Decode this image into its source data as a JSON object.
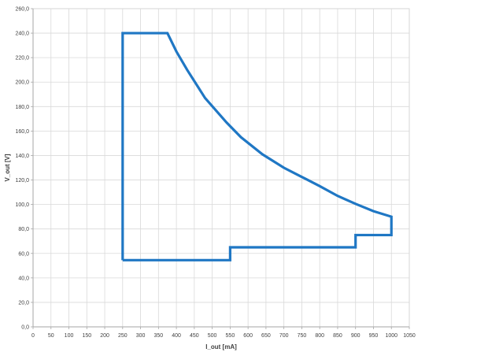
{
  "chart_data": {
    "type": "line",
    "title": "",
    "xlabel": "I_out [mA]",
    "ylabel": "V_out [V]",
    "xlim": [
      0,
      1050
    ],
    "ylim": [
      0,
      260
    ],
    "x_ticks": [
      0,
      50,
      100,
      150,
      200,
      250,
      300,
      350,
      400,
      450,
      500,
      550,
      600,
      650,
      700,
      750,
      800,
      850,
      900,
      950,
      1000,
      1050
    ],
    "x_tick_labels": [
      "0",
      "50",
      "100",
      "150",
      "200",
      "250",
      "300",
      "350",
      "400",
      "450",
      "500",
      "550",
      "600",
      "650",
      "700",
      "750",
      "800",
      "850",
      "900",
      "950",
      "1000",
      "1050"
    ],
    "y_ticks": [
      0,
      20,
      40,
      60,
      80,
      100,
      120,
      140,
      160,
      180,
      200,
      220,
      240,
      260
    ],
    "y_tick_labels": [
      "0,0",
      "20,0",
      "40,0",
      "60,0",
      "80,0",
      "100,0",
      "120,0",
      "140,0",
      "160,0",
      "180,0",
      "200,0",
      "220,0",
      "240,0",
      "260,0"
    ],
    "grid": true,
    "legend": "none",
    "series": [
      {
        "color": "#1f77c4",
        "points": [
          [
            250,
            54.5
          ],
          [
            250,
            240
          ],
          [
            375,
            240
          ],
          [
            400,
            225
          ],
          [
            430,
            210
          ],
          [
            480,
            187
          ],
          [
            540,
            167
          ],
          [
            580,
            155
          ],
          [
            640,
            141
          ],
          [
            700,
            130
          ],
          [
            760,
            121
          ],
          [
            800,
            115
          ],
          [
            850,
            107
          ],
          [
            900,
            100.5
          ],
          [
            950,
            94.5
          ],
          [
            1000,
            90
          ],
          [
            1000,
            75
          ],
          [
            900,
            75
          ],
          [
            900,
            65
          ],
          [
            550,
            65
          ],
          [
            550,
            54.5
          ],
          [
            250,
            54.5
          ]
        ]
      }
    ],
    "colors": {
      "grid": "#d9d9d9",
      "axis": "#a6a6a6",
      "plot_border": "#c0c0c0"
    }
  }
}
